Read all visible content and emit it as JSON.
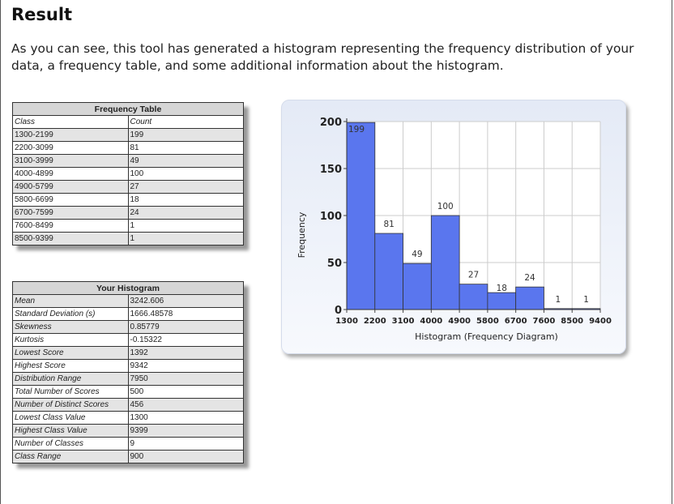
{
  "heading": "Result",
  "intro": "As you can see, this tool has generated a histogram representing the frequency distribution of your data, a frequency table, and some additional information about the histogram.",
  "frequency_table": {
    "title": "Frequency Table",
    "headers": [
      "Class",
      "Count"
    ],
    "rows": [
      [
        "1300-2199",
        "199"
      ],
      [
        "2200-3099",
        "81"
      ],
      [
        "3100-3999",
        "49"
      ],
      [
        "4000-4899",
        "100"
      ],
      [
        "4900-5799",
        "27"
      ],
      [
        "5800-6699",
        "18"
      ],
      [
        "6700-7599",
        "24"
      ],
      [
        "7600-8499",
        "1"
      ],
      [
        "8500-9399",
        "1"
      ]
    ]
  },
  "histogram_table": {
    "title": "Your Histogram",
    "rows": [
      [
        "Mean",
        "3242.606"
      ],
      [
        "Standard Deviation (s)",
        "1666.48578"
      ],
      [
        "Skewness",
        "0.85779"
      ],
      [
        "Kurtosis",
        "-0.15322"
      ],
      [
        "Lowest Score",
        "1392"
      ],
      [
        "Highest Score",
        "9342"
      ],
      [
        "Distribution Range",
        "7950"
      ],
      [
        "Total Number of Scores",
        "500"
      ],
      [
        "Number of Distinct Scores",
        "456"
      ],
      [
        "Lowest Class Value",
        "1300"
      ],
      [
        "Highest Class Value",
        "9399"
      ],
      [
        "Number of Classes",
        "9"
      ],
      [
        "Class Range",
        "900"
      ]
    ]
  },
  "chart_data": {
    "type": "bar",
    "categories": [
      "1300-2199",
      "2200-3099",
      "3100-3999",
      "4000-4899",
      "4900-5799",
      "5800-6699",
      "6700-7599",
      "7600-8499",
      "8500-9399"
    ],
    "x_ticks": [
      "1300",
      "2200",
      "3100",
      "4000",
      "4900",
      "5800",
      "6700",
      "7600",
      "8500",
      "9400"
    ],
    "values": [
      199,
      81,
      49,
      100,
      27,
      18,
      24,
      1,
      1
    ],
    "ylabel": "Frequency",
    "xlabel": "Histogram (Frequency Diagram)",
    "ylim": [
      0,
      200
    ],
    "y_ticks": [
      0,
      50,
      100,
      150,
      200
    ],
    "grid": true,
    "bar_color": "#5a76ee"
  }
}
